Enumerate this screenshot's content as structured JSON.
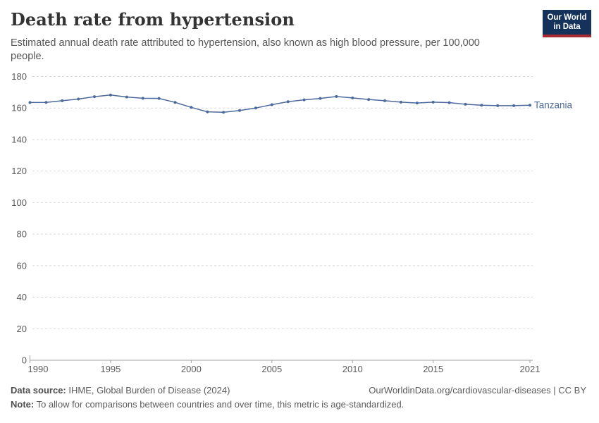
{
  "header": {
    "title": "Death rate from hypertension",
    "subtitle": "Estimated annual death rate attributed to hypertension, also known as high blood pressure, per 100,000 people.",
    "logo": {
      "line1": "Our World",
      "line2": "in Data",
      "bg_color": "#14325a",
      "stripe_color": "#a82b31"
    }
  },
  "chart_data": {
    "type": "line",
    "title": "Death rate from hypertension",
    "xlabel": "",
    "ylabel": "",
    "xlim": [
      1990,
      2021
    ],
    "ylim": [
      0,
      180
    ],
    "x_ticks": [
      1990,
      1995,
      2000,
      2005,
      2010,
      2015,
      2021
    ],
    "y_ticks": [
      0,
      20,
      40,
      60,
      80,
      100,
      120,
      140,
      160,
      180
    ],
    "grid": "horizontal-dashed",
    "legend_position": "end-of-line-label",
    "series": [
      {
        "name": "Tanzania",
        "color": "#4c6a9c",
        "x": [
          1990,
          1991,
          1992,
          1993,
          1994,
          1995,
          1996,
          1997,
          1998,
          1999,
          2000,
          2001,
          2002,
          2003,
          2004,
          2005,
          2006,
          2007,
          2008,
          2009,
          2010,
          2011,
          2012,
          2013,
          2014,
          2015,
          2016,
          2017,
          2018,
          2019,
          2020,
          2021
        ],
        "values": [
          163.5,
          163.6,
          164.6,
          165.7,
          167.2,
          168.3,
          167.0,
          166.2,
          166.1,
          163.6,
          160.4,
          157.6,
          157.3,
          158.4,
          160.0,
          162.1,
          164.0,
          165.2,
          166.1,
          167.3,
          166.4,
          165.4,
          164.6,
          163.7,
          163.2,
          163.7,
          163.4,
          162.4,
          161.8,
          161.5,
          161.5,
          161.8
        ]
      }
    ],
    "colors": {
      "line": "#4c6a9c",
      "grid": "#d9d9d9",
      "axis": "#a1a1a1",
      "tick_text": "#5b5b5b"
    }
  },
  "footer": {
    "datasource_label": "Data source:",
    "datasource_value": " IHME, Global Burden of Disease (2024)",
    "link": "OurWorldinData.org/cardiovascular-diseases | CC BY",
    "note_label": "Note:",
    "note_value": " To allow for comparisons between countries and over time, this metric is age-standardized."
  }
}
